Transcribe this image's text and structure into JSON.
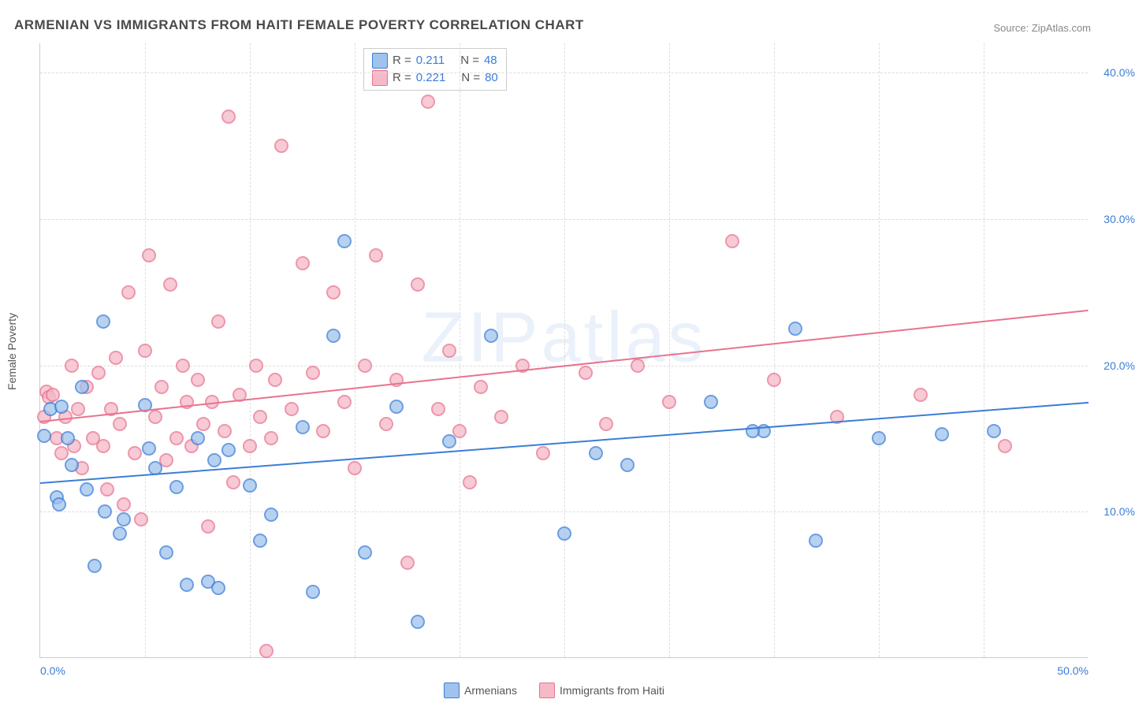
{
  "title": "ARMENIAN VS IMMIGRANTS FROM HAITI FEMALE POVERTY CORRELATION CHART",
  "source": "Source: ZipAtlas.com",
  "ylabel": "Female Poverty",
  "watermark": "ZIPatlas",
  "chart": {
    "type": "scatter",
    "xlim": [
      0,
      50
    ],
    "ylim": [
      0,
      42
    ],
    "background_color": "#ffffff",
    "grid_color": "#dddddd",
    "axis_color": "#cccccc",
    "tick_label_color": "#3b7dd8",
    "tick_fontsize": 14,
    "yticks": [
      10,
      20,
      30,
      40
    ],
    "ytick_labels": [
      "10.0%",
      "20.0%",
      "30.0%",
      "40.0%"
    ],
    "xticks_minor": [
      5,
      10,
      15,
      20,
      25,
      30,
      35,
      40,
      45
    ],
    "xtick_labels": {
      "0": "0.0%",
      "50": "50.0%"
    },
    "marker_radius": 7,
    "marker_fill_opacity": 0.45,
    "marker_stroke_width": 2,
    "trendline_width": 2
  },
  "series": {
    "armenians": {
      "label": "Armenians",
      "color_fill": "#9fc3ec",
      "color_stroke": "#3b7dd8",
      "R": "0.211",
      "N": "48",
      "trend": {
        "x1": 0,
        "y1": 12.0,
        "x2": 50,
        "y2": 17.5
      },
      "points": [
        [
          0.2,
          15.2
        ],
        [
          0.5,
          17.0
        ],
        [
          0.8,
          11.0
        ],
        [
          0.9,
          10.5
        ],
        [
          1.0,
          17.2
        ],
        [
          1.3,
          15.0
        ],
        [
          1.5,
          13.2
        ],
        [
          2.0,
          18.5
        ],
        [
          2.2,
          11.5
        ],
        [
          2.6,
          6.3
        ],
        [
          3.0,
          23.0
        ],
        [
          3.1,
          10.0
        ],
        [
          3.8,
          8.5
        ],
        [
          4.0,
          9.5
        ],
        [
          5.0,
          17.3
        ],
        [
          5.2,
          14.3
        ],
        [
          5.5,
          13.0
        ],
        [
          6.0,
          7.2
        ],
        [
          6.5,
          11.7
        ],
        [
          7.0,
          5.0
        ],
        [
          7.5,
          15.0
        ],
        [
          8.0,
          5.2
        ],
        [
          8.3,
          13.5
        ],
        [
          8.5,
          4.8
        ],
        [
          9.0,
          14.2
        ],
        [
          10.0,
          11.8
        ],
        [
          10.5,
          8.0
        ],
        [
          11.0,
          9.8
        ],
        [
          12.5,
          15.8
        ],
        [
          13.0,
          4.5
        ],
        [
          14.0,
          22.0
        ],
        [
          14.5,
          28.5
        ],
        [
          15.5,
          7.2
        ],
        [
          17.0,
          17.2
        ],
        [
          18.0,
          2.5
        ],
        [
          19.5,
          14.8
        ],
        [
          21.5,
          22.0
        ],
        [
          25.0,
          8.5
        ],
        [
          26.5,
          14.0
        ],
        [
          28.0,
          13.2
        ],
        [
          32.0,
          17.5
        ],
        [
          34.5,
          15.5
        ],
        [
          36.0,
          22.5
        ],
        [
          37.0,
          8.0
        ],
        [
          40.0,
          15.0
        ],
        [
          43.0,
          15.3
        ],
        [
          45.5,
          15.5
        ],
        [
          34.0,
          15.5
        ]
      ]
    },
    "haiti": {
      "label": "Immigrants from Haiti",
      "color_fill": "#f5b9c8",
      "color_stroke": "#e8738f",
      "R": "0.221",
      "N": "80",
      "trend": {
        "x1": 0,
        "y1": 16.2,
        "x2": 50,
        "y2": 23.8
      },
      "points": [
        [
          0.2,
          16.5
        ],
        [
          0.3,
          18.2
        ],
        [
          0.4,
          17.8
        ],
        [
          0.6,
          18.0
        ],
        [
          0.8,
          15.0
        ],
        [
          1.0,
          14.0
        ],
        [
          1.2,
          16.5
        ],
        [
          1.5,
          20.0
        ],
        [
          1.6,
          14.5
        ],
        [
          1.8,
          17.0
        ],
        [
          2.0,
          13.0
        ],
        [
          2.2,
          18.5
        ],
        [
          2.5,
          15.0
        ],
        [
          2.8,
          19.5
        ],
        [
          3.0,
          14.5
        ],
        [
          3.2,
          11.5
        ],
        [
          3.4,
          17.0
        ],
        [
          3.6,
          20.5
        ],
        [
          3.8,
          16.0
        ],
        [
          4.0,
          10.5
        ],
        [
          4.2,
          25.0
        ],
        [
          4.5,
          14.0
        ],
        [
          4.8,
          9.5
        ],
        [
          5.0,
          21.0
        ],
        [
          5.2,
          27.5
        ],
        [
          5.5,
          16.5
        ],
        [
          5.8,
          18.5
        ],
        [
          6.0,
          13.5
        ],
        [
          6.2,
          25.5
        ],
        [
          6.5,
          15.0
        ],
        [
          6.8,
          20.0
        ],
        [
          7.0,
          17.5
        ],
        [
          7.2,
          14.5
        ],
        [
          7.5,
          19.0
        ],
        [
          7.8,
          16.0
        ],
        [
          8.0,
          9.0
        ],
        [
          8.2,
          17.5
        ],
        [
          8.5,
          23.0
        ],
        [
          8.8,
          15.5
        ],
        [
          9.0,
          37.0
        ],
        [
          9.2,
          12.0
        ],
        [
          9.5,
          18.0
        ],
        [
          10.0,
          14.5
        ],
        [
          10.3,
          20.0
        ],
        [
          10.5,
          16.5
        ],
        [
          10.8,
          0.5
        ],
        [
          11.0,
          15.0
        ],
        [
          11.2,
          19.0
        ],
        [
          11.5,
          35.0
        ],
        [
          12.0,
          17.0
        ],
        [
          12.5,
          27.0
        ],
        [
          13.0,
          19.5
        ],
        [
          13.5,
          15.5
        ],
        [
          14.0,
          25.0
        ],
        [
          14.5,
          17.5
        ],
        [
          15.0,
          13.0
        ],
        [
          15.5,
          20.0
        ],
        [
          16.0,
          27.5
        ],
        [
          16.5,
          16.0
        ],
        [
          17.0,
          19.0
        ],
        [
          17.5,
          6.5
        ],
        [
          18.0,
          25.5
        ],
        [
          18.5,
          38.0
        ],
        [
          19.0,
          17.0
        ],
        [
          19.5,
          21.0
        ],
        [
          20.0,
          15.5
        ],
        [
          20.5,
          12.0
        ],
        [
          21.0,
          18.5
        ],
        [
          22.0,
          16.5
        ],
        [
          23.0,
          20.0
        ],
        [
          24.0,
          14.0
        ],
        [
          26.0,
          19.5
        ],
        [
          27.0,
          16.0
        ],
        [
          28.5,
          20.0
        ],
        [
          30.0,
          17.5
        ],
        [
          33.0,
          28.5
        ],
        [
          35.0,
          19.0
        ],
        [
          38.0,
          16.5
        ],
        [
          42.0,
          18.0
        ],
        [
          46.0,
          14.5
        ]
      ]
    }
  },
  "legend_top": {
    "r_label": "R  =",
    "n_label": "N  ="
  },
  "bottom_legend": {
    "armenians": "Armenians",
    "haiti": "Immigrants from Haiti"
  }
}
